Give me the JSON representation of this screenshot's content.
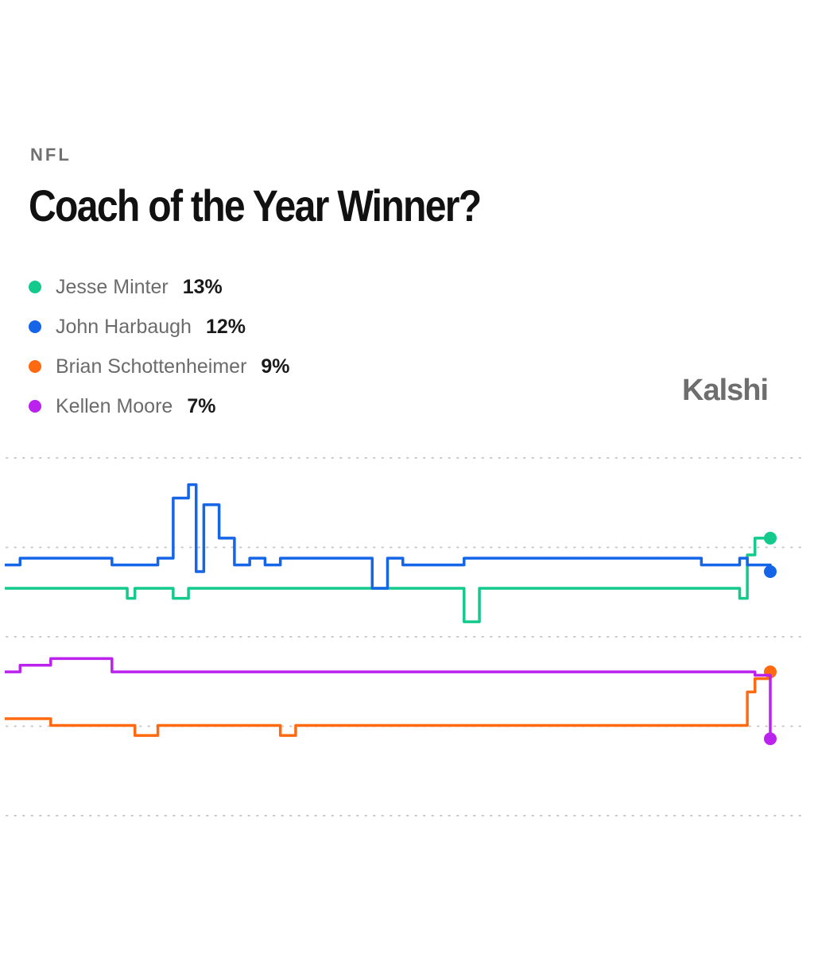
{
  "header": {
    "category": "NFL",
    "title": "Coach of the Year Winner?"
  },
  "brand": {
    "name": "Kalshi"
  },
  "legend": [
    {
      "name": "Jesse Minter",
      "value": "13%",
      "color": "#13c98b"
    },
    {
      "name": "John Harbaugh",
      "value": "12%",
      "color": "#1565e8"
    },
    {
      "name": "Brian Schottenheimer",
      "value": "9%",
      "color": "#ff6a10"
    },
    {
      "name": "Kellen Moore",
      "value": "7%",
      "color": "#bb22ee"
    }
  ],
  "chart_data": {
    "type": "line",
    "title": "Coach of the Year Winner?",
    "xlabel": "",
    "ylabel": "",
    "grid": true,
    "legend_position": "top-left",
    "y_unit": "%",
    "ylim": [
      4.7,
      15.4
    ],
    "x": [
      0,
      2,
      4,
      6,
      8,
      10,
      12,
      14,
      15,
      16,
      17,
      18,
      20,
      22,
      23,
      24,
      25,
      26,
      28,
      30,
      31,
      32,
      34,
      36,
      38,
      40,
      42,
      44,
      46,
      47,
      48,
      50,
      52,
      55,
      56,
      57,
      58,
      60,
      62,
      64,
      66,
      68,
      70,
      72,
      74,
      75,
      76,
      78,
      80,
      82,
      83,
      84,
      85,
      86,
      87,
      88,
      90,
      91,
      92,
      93,
      94,
      95,
      96,
      97,
      98,
      100
    ],
    "series": [
      {
        "name": "Jesse Minter",
        "color": "#13c98b",
        "values": [
          11.5,
          11.5,
          11.5,
          11.5,
          11.5,
          11.5,
          11.5,
          11.5,
          11.5,
          11.2,
          11.5,
          11.5,
          11.5,
          11.2,
          11.2,
          11.5,
          11.5,
          11.5,
          11.5,
          11.5,
          11.5,
          11.5,
          11.5,
          11.5,
          11.5,
          11.5,
          11.5,
          11.5,
          11.5,
          11.5,
          11.5,
          11.5,
          11.5,
          11.5,
          11.5,
          11.5,
          11.5,
          10.5,
          11.5,
          11.5,
          11.5,
          11.5,
          11.5,
          11.5,
          11.5,
          11.5,
          11.5,
          11.5,
          11.5,
          11.5,
          11.5,
          11.5,
          11.5,
          11.5,
          11.5,
          11.5,
          11.5,
          11.5,
          11.5,
          11.5,
          11.5,
          11.5,
          11.2,
          12.5,
          13.0,
          13.0
        ]
      },
      {
        "name": "John Harbaugh",
        "color": "#1565e8",
        "values": [
          12.2,
          12.4,
          12.4,
          12.4,
          12.4,
          12.4,
          12.4,
          12.2,
          12.2,
          12.2,
          12.2,
          12.2,
          12.4,
          14.2,
          14.2,
          14.6,
          12.0,
          14.0,
          13.0,
          12.2,
          12.2,
          12.4,
          12.2,
          12.4,
          12.4,
          12.4,
          12.4,
          12.4,
          12.4,
          12.4,
          11.5,
          12.4,
          12.2,
          12.2,
          12.2,
          12.2,
          12.2,
          12.4,
          12.4,
          12.4,
          12.4,
          12.4,
          12.4,
          12.4,
          12.4,
          12.4,
          12.4,
          12.4,
          12.4,
          12.4,
          12.4,
          12.4,
          12.4,
          12.4,
          12.4,
          12.4,
          12.4,
          12.2,
          12.2,
          12.2,
          12.2,
          12.2,
          12.4,
          12.2,
          12.2,
          12.0
        ]
      },
      {
        "name": "Brian Schottenheimer",
        "color": "#ff6a10",
        "values": [
          7.6,
          7.6,
          7.6,
          7.4,
          7.4,
          7.4,
          7.4,
          7.4,
          7.4,
          7.4,
          7.1,
          7.1,
          7.4,
          7.4,
          7.4,
          7.4,
          7.4,
          7.4,
          7.4,
          7.4,
          7.4,
          7.4,
          7.4,
          7.1,
          7.4,
          7.4,
          7.4,
          7.4,
          7.4,
          7.4,
          7.4,
          7.4,
          7.4,
          7.4,
          7.4,
          7.4,
          7.4,
          7.4,
          7.4,
          7.4,
          7.4,
          7.4,
          7.4,
          7.4,
          7.4,
          7.4,
          7.4,
          7.4,
          7.4,
          7.4,
          7.4,
          7.4,
          7.4,
          7.4,
          7.4,
          7.4,
          7.4,
          7.4,
          7.4,
          7.4,
          7.4,
          7.4,
          7.4,
          8.4,
          8.8,
          9.0
        ]
      },
      {
        "name": "Kellen Moore",
        "color": "#bb22ee",
        "values": [
          9.0,
          9.2,
          9.2,
          9.4,
          9.4,
          9.4,
          9.4,
          9.0,
          9.0,
          9.0,
          9.0,
          9.0,
          9.0,
          9.0,
          9.0,
          9.0,
          9.0,
          9.0,
          9.0,
          9.0,
          9.0,
          9.0,
          9.0,
          9.0,
          9.0,
          9.0,
          9.0,
          9.0,
          9.0,
          9.0,
          9.0,
          9.0,
          9.0,
          9.0,
          9.0,
          9.0,
          9.0,
          9.0,
          9.0,
          9.0,
          9.0,
          9.0,
          9.0,
          9.0,
          9.0,
          9.0,
          9.0,
          9.0,
          9.0,
          9.0,
          9.0,
          9.0,
          9.0,
          9.0,
          9.0,
          9.0,
          9.0,
          9.0,
          9.0,
          9.0,
          9.0,
          9.0,
          9.0,
          9.0,
          8.9,
          7.0
        ]
      }
    ]
  }
}
